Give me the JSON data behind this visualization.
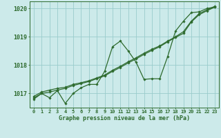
{
  "xlabel": "Graphe pression niveau de la mer (hPa)",
  "hours": [
    0,
    1,
    2,
    3,
    4,
    5,
    6,
    7,
    8,
    9,
    10,
    11,
    12,
    13,
    14,
    15,
    16,
    17,
    18,
    19,
    20,
    21,
    22,
    23
  ],
  "line1": [
    1016.8,
    1017.0,
    1016.85,
    1017.1,
    1016.65,
    1017.0,
    1017.2,
    1017.32,
    1017.32,
    1017.78,
    1018.65,
    1018.85,
    1018.5,
    1018.1,
    1017.5,
    1017.52,
    1017.52,
    1018.3,
    1019.2,
    1019.55,
    1019.85,
    1019.88,
    1020.0,
    1020.05
  ],
  "line2": [
    1016.85,
    1017.0,
    1017.05,
    1017.12,
    1017.18,
    1017.28,
    1017.35,
    1017.42,
    1017.52,
    1017.62,
    1017.78,
    1017.92,
    1018.08,
    1018.22,
    1018.38,
    1018.52,
    1018.65,
    1018.82,
    1018.98,
    1019.12,
    1019.52,
    1019.78,
    1019.92,
    1020.05
  ],
  "line3": [
    1016.9,
    1017.05,
    1017.12,
    1017.18,
    1017.22,
    1017.32,
    1017.38,
    1017.45,
    1017.55,
    1017.65,
    1017.82,
    1017.96,
    1018.12,
    1018.26,
    1018.42,
    1018.56,
    1018.68,
    1018.85,
    1019.0,
    1019.18,
    1019.55,
    1019.82,
    1019.95,
    1020.08
  ],
  "line_color": "#2d6a2d",
  "bg_color": "#cceaea",
  "grid_color": "#99cccc",
  "ylim": [
    1016.5,
    1020.25
  ],
  "yticks": [
    1017,
    1018,
    1019,
    1020
  ],
  "xticks": [
    0,
    1,
    2,
    3,
    4,
    5,
    6,
    7,
    8,
    9,
    10,
    11,
    12,
    13,
    14,
    15,
    16,
    17,
    18,
    19,
    20,
    21,
    22,
    23
  ],
  "marker": "D",
  "marker_size": 1.8,
  "line_width": 0.9,
  "tick_fontsize": 5.0,
  "xlabel_fontsize": 6.0
}
